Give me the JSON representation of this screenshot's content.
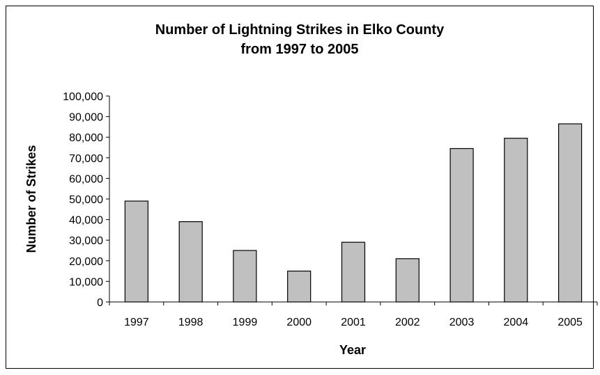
{
  "chart_data": {
    "type": "bar",
    "title_lines": [
      "Number of Lightning Strikes in Elko County",
      "from 1997 to 2005"
    ],
    "xlabel": "Year",
    "ylabel": "Number of Strikes",
    "categories": [
      "1997",
      "1998",
      "1999",
      "2000",
      "2001",
      "2002",
      "2003",
      "2004",
      "2005"
    ],
    "values": [
      49000,
      39000,
      25000,
      15000,
      29000,
      21000,
      74500,
      79500,
      86500
    ],
    "ylim": [
      0,
      100000
    ],
    "yticks": [
      0,
      10000,
      20000,
      30000,
      40000,
      50000,
      60000,
      70000,
      80000,
      90000,
      100000
    ],
    "ytick_labels": [
      "0",
      "10,000",
      "20,000",
      "30,000",
      "40,000",
      "50,000",
      "60,000",
      "70,000",
      "80,000",
      "90,000",
      "100,000"
    ],
    "grid": false,
    "legend": "none",
    "bar_color": "#c0c0c0",
    "bar_edge_color": "#000000"
  }
}
